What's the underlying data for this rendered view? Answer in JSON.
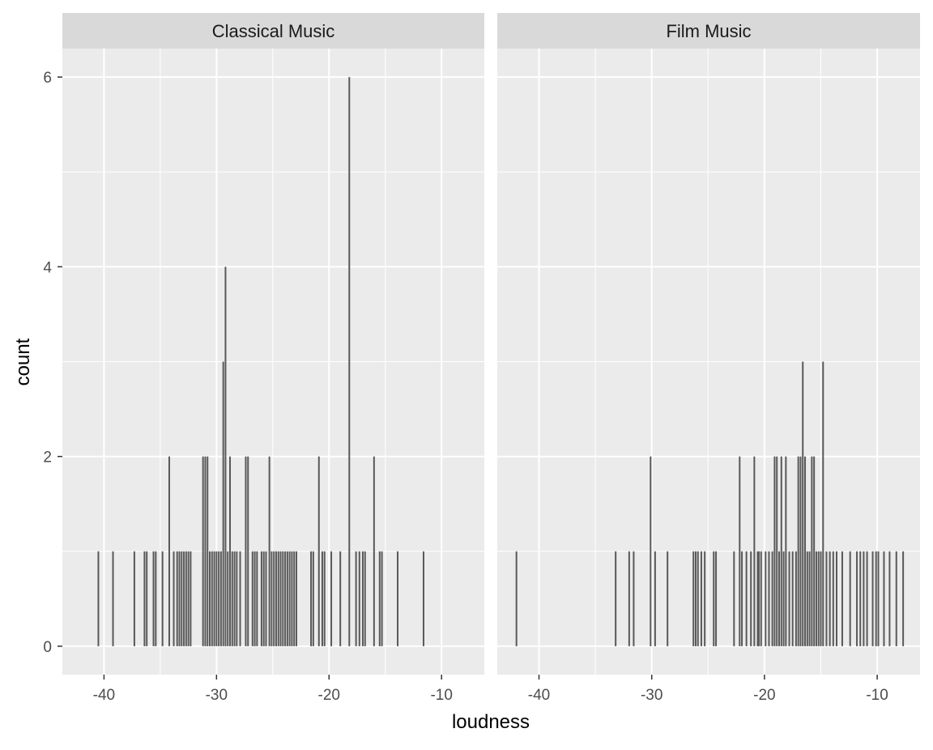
{
  "chart_data": {
    "type": "bar",
    "xlabel": "loudness",
    "ylabel": "count",
    "xlim": [
      -43.7,
      -6.2
    ],
    "ylim": [
      -0.3,
      6.3
    ],
    "x_ticks": [
      -40,
      -30,
      -20,
      -10
    ],
    "y_ticks": [
      0,
      2,
      4,
      6
    ],
    "grid": true,
    "panels": [
      {
        "label": "Classical Music",
        "x": [
          -40.5,
          -39.2,
          -37.3,
          -36.4,
          -36.2,
          -35.6,
          -35.4,
          -34.8,
          -34.2,
          -33.8,
          -33.5,
          -33.3,
          -33.1,
          -32.9,
          -32.7,
          -32.5,
          -32.3,
          -31.2,
          -31.0,
          -30.8,
          -30.6,
          -30.4,
          -30.2,
          -30.0,
          -29.8,
          -29.6,
          -29.4,
          -29.2,
          -29.0,
          -28.8,
          -28.6,
          -28.4,
          -28.2,
          -27.9,
          -27.4,
          -27.2,
          -26.8,
          -26.6,
          -26.4,
          -26.0,
          -25.8,
          -25.6,
          -25.3,
          -25.1,
          -24.9,
          -24.7,
          -24.5,
          -24.3,
          -24.1,
          -23.9,
          -23.7,
          -23.5,
          -23.3,
          -23.1,
          -22.9,
          -21.6,
          -21.4,
          -20.9,
          -20.6,
          -20.4,
          -19.8,
          -19.0,
          -18.2,
          -17.6,
          -17.3,
          -17.0,
          -16.8,
          -16.0,
          -15.5,
          -15.3,
          -13.9,
          -11.6
        ],
        "values": [
          1,
          1,
          1,
          1,
          1,
          1,
          1,
          1,
          2,
          1,
          1,
          1,
          1,
          1,
          1,
          1,
          1,
          2,
          2,
          2,
          1,
          1,
          1,
          1,
          1,
          1,
          3,
          4,
          1,
          2,
          1,
          1,
          1,
          1,
          2,
          2,
          1,
          1,
          1,
          1,
          1,
          1,
          2,
          1,
          1,
          1,
          1,
          1,
          1,
          1,
          1,
          1,
          1,
          1,
          1,
          1,
          1,
          2,
          1,
          1,
          1,
          1,
          6,
          1,
          1,
          1,
          1,
          2,
          1,
          1,
          1,
          1
        ]
      },
      {
        "label": "Film Music",
        "x": [
          -42.0,
          -33.2,
          -32.0,
          -31.6,
          -30.1,
          -29.7,
          -28.6,
          -26.3,
          -26.1,
          -25.9,
          -25.6,
          -25.3,
          -24.5,
          -24.3,
          -22.7,
          -22.2,
          -22.0,
          -21.6,
          -21.2,
          -20.9,
          -20.6,
          -20.5,
          -20.3,
          -19.9,
          -19.6,
          -19.3,
          -19.1,
          -18.9,
          -18.7,
          -18.5,
          -18.3,
          -18.1,
          -17.8,
          -17.5,
          -17.2,
          -17.0,
          -16.8,
          -16.6,
          -16.4,
          -16.2,
          -16.0,
          -15.8,
          -15.6,
          -15.4,
          -15.2,
          -15.0,
          -14.8,
          -14.5,
          -14.2,
          -13.9,
          -13.6,
          -13.1,
          -12.4,
          -11.8,
          -11.5,
          -11.2,
          -10.9,
          -10.4,
          -10.1,
          -9.9,
          -9.4,
          -8.9,
          -8.3,
          -7.7
        ],
        "values": [
          1,
          1,
          1,
          1,
          2,
          1,
          1,
          1,
          1,
          1,
          1,
          1,
          1,
          1,
          1,
          2,
          1,
          1,
          1,
          2,
          1,
          1,
          1,
          1,
          1,
          1,
          2,
          2,
          1,
          2,
          1,
          2,
          1,
          1,
          1,
          2,
          2,
          3,
          2,
          1,
          1,
          2,
          2,
          1,
          1,
          1,
          3,
          1,
          1,
          1,
          1,
          1,
          1,
          1,
          1,
          1,
          1,
          1,
          1,
          1,
          1,
          1,
          1,
          1
        ]
      }
    ]
  },
  "colors": {
    "background": "#ffffff",
    "panel_bg": "#ebebeb",
    "strip_bg": "#d9d9d9",
    "grid_major": "#ffffff",
    "bar": "#595959",
    "axis_text": "#4d4d4d",
    "title_text": "#000000",
    "strip_text": "#1a1a1a"
  }
}
